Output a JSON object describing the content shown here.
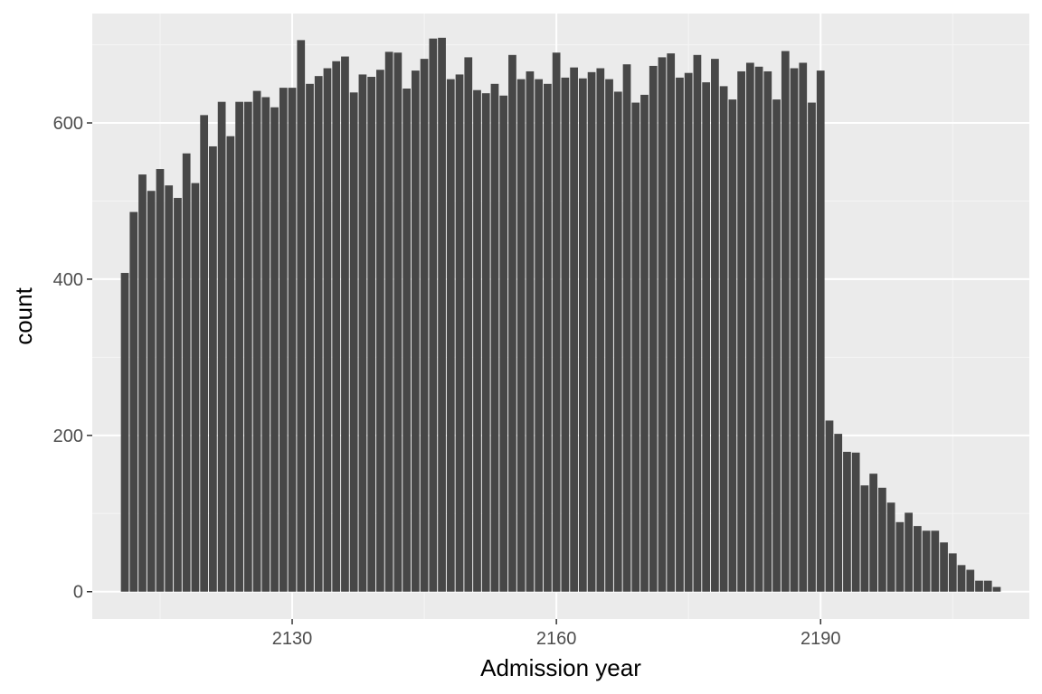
{
  "colors": {
    "panel_background": "#ebebeb",
    "major_grid": "#ffffff",
    "minor_grid": "#f5f5f5",
    "bar_fill": "#474747",
    "tick_mark": "#333333",
    "tick_text": "#4d4d4d",
    "axis_title": "#000000"
  },
  "chart_data": {
    "type": "bar",
    "title": "",
    "xlabel": "Admission year",
    "ylabel": "count",
    "xlim": [
      2107.3,
      2213.7
    ],
    "ylim": [
      -35,
      740
    ],
    "x_ticks": [
      2130,
      2160,
      2190
    ],
    "x_tick_labels": [
      "2130",
      "2160",
      "2190"
    ],
    "x_minor_ticks": [
      2115,
      2145,
      2175,
      2205
    ],
    "y_ticks": [
      0,
      200,
      400,
      600
    ],
    "y_tick_labels": [
      "0",
      "200",
      "400",
      "600"
    ],
    "y_minor_ticks": [
      100,
      300,
      500,
      700
    ],
    "grid": true,
    "legend": "none",
    "bar_width_years": 1,
    "x": [
      2111,
      2112,
      2113,
      2114,
      2115,
      2116,
      2117,
      2118,
      2119,
      2120,
      2121,
      2122,
      2123,
      2124,
      2125,
      2126,
      2127,
      2128,
      2129,
      2130,
      2131,
      2132,
      2133,
      2134,
      2135,
      2136,
      2137,
      2138,
      2139,
      2140,
      2141,
      2142,
      2143,
      2144,
      2145,
      2146,
      2147,
      2148,
      2149,
      2150,
      2151,
      2152,
      2153,
      2154,
      2155,
      2156,
      2157,
      2158,
      2159,
      2160,
      2161,
      2162,
      2163,
      2164,
      2165,
      2166,
      2167,
      2168,
      2169,
      2170,
      2171,
      2172,
      2173,
      2174,
      2175,
      2176,
      2177,
      2178,
      2179,
      2180,
      2181,
      2182,
      2183,
      2184,
      2185,
      2186,
      2187,
      2188,
      2189,
      2190,
      2191,
      2192,
      2193,
      2194,
      2195,
      2196,
      2197,
      2198,
      2199,
      2200,
      2201,
      2202,
      2203,
      2204,
      2205,
      2206,
      2207,
      2208,
      2209,
      2210
    ],
    "values": [
      408,
      486,
      534,
      513,
      541,
      520,
      504,
      561,
      523,
      610,
      570,
      627,
      583,
      627,
      627,
      641,
      633,
      620,
      645,
      645,
      706,
      650,
      660,
      670,
      679,
      685,
      639,
      662,
      659,
      668,
      691,
      690,
      644,
      667,
      682,
      708,
      709,
      656,
      662,
      684,
      642,
      638,
      650,
      635,
      687,
      656,
      666,
      656,
      650,
      690,
      658,
      671,
      657,
      665,
      670,
      656,
      640,
      675,
      626,
      636,
      673,
      684,
      689,
      658,
      664,
      687,
      652,
      682,
      647,
      630,
      666,
      677,
      672,
      666,
      630,
      692,
      670,
      677,
      626,
      667,
      219,
      202,
      179,
      178,
      136,
      151,
      133,
      114,
      89,
      101,
      84,
      78,
      78,
      63,
      49,
      34,
      28,
      14,
      14,
      6
    ]
  }
}
